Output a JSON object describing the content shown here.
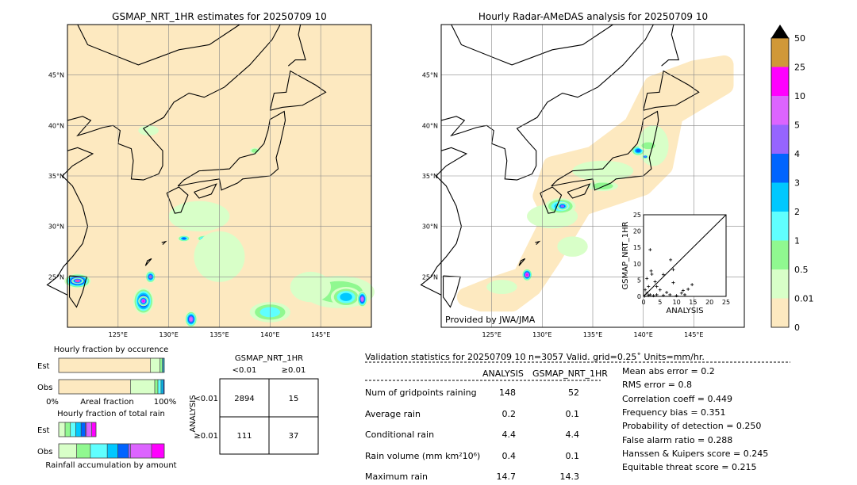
{
  "map_left": {
    "title": "GSMAP_NRT_1HR estimates for 20250709 10"
  },
  "map_right": {
    "title": "Hourly Radar-AMeDAS analysis for 20250709 10",
    "credit": "Provided by JWA/JMA"
  },
  "axes": {
    "lon_ticks": [
      "125°E",
      "130°E",
      "135°E",
      "140°E",
      "145°E"
    ],
    "lon_values": [
      125,
      130,
      135,
      140,
      145
    ],
    "lat_ticks": [
      "45°N",
      "40°N",
      "35°N",
      "30°N",
      "25°N"
    ],
    "lat_values": [
      45,
      40,
      35,
      30,
      25
    ]
  },
  "colorbar": {
    "labels": [
      "0",
      "0.01",
      "0.5",
      "1",
      "2",
      "3",
      "4",
      "5",
      "10",
      "25",
      "50"
    ],
    "colors": [
      "#fde9c0",
      "#d8ffc8",
      "#90f890",
      "#60ffff",
      "#00c8ff",
      "#0064ff",
      "#9664ff",
      "#dc64ff",
      "#ff00ff",
      "#d09838"
    ],
    "extend_color": "#000000"
  },
  "chart_data": [
    {
      "type": "scatter",
      "xlabel": "ANALYSIS",
      "ylabel": "GSMAP_NRT_1HR",
      "xlim": [
        0,
        25
      ],
      "ylim": [
        0,
        25
      ],
      "ticks": [
        "0",
        "5",
        "10",
        "15",
        "20",
        "25"
      ],
      "points": [
        [
          2,
          14.3
        ],
        [
          8.2,
          11.2
        ],
        [
          9,
          8.2
        ],
        [
          2.3,
          7.8
        ],
        [
          2.5,
          6.8
        ],
        [
          6,
          6.7
        ],
        [
          1,
          5.5
        ],
        [
          9,
          4.2
        ],
        [
          14.7,
          3.6
        ],
        [
          3.5,
          4.5
        ],
        [
          12,
          1.8
        ],
        [
          13.5,
          2.2
        ],
        [
          11.5,
          1
        ],
        [
          12.5,
          0.5
        ],
        [
          7,
          1.2
        ],
        [
          5,
          2
        ],
        [
          4,
          3
        ],
        [
          1.5,
          3
        ],
        [
          0.5,
          2
        ],
        [
          1,
          1
        ],
        [
          2,
          0.5
        ],
        [
          3,
          0.2
        ],
        [
          0.3,
          0.1
        ],
        [
          1.5,
          0.3
        ],
        [
          4,
          0.5
        ],
        [
          6,
          0.3
        ],
        [
          8,
          0.5
        ],
        [
          10,
          0.2
        ]
      ]
    },
    {
      "type": "bar",
      "title": "Hourly fraction by occurence",
      "xlabel": "Areal fraction",
      "x_tick_labels": [
        "0%",
        "100%"
      ],
      "categories": [
        "Est",
        "Obs"
      ],
      "series": [
        {
          "category": "Est",
          "values_percent": [
            87,
            9,
            2,
            1,
            1
          ]
        },
        {
          "category": "Obs",
          "values_percent": [
            68,
            23,
            3,
            3,
            2,
            1
          ]
        }
      ]
    },
    {
      "type": "bar",
      "title": "Hourly fraction of total rain",
      "xlabel": "Rainfall accumulation by amount",
      "categories": [
        "Est",
        "Obs"
      ],
      "series": [
        {
          "category": "Est",
          "values_percent": [
            6,
            5,
            5,
            5,
            4,
            1,
            5,
            4
          ]
        },
        {
          "category": "Obs",
          "values_percent": [
            17,
            13,
            16,
            10,
            10,
            2,
            20,
            12
          ]
        }
      ]
    },
    {
      "type": "table",
      "title": "GSMAP_NRT_1HR",
      "col_labels": [
        "<0.01",
        "≥0.01"
      ],
      "row_title": "ANALYSIS",
      "row_labels": [
        "<0.01",
        "≥0.01"
      ],
      "cells": [
        [
          "2894",
          "15"
        ],
        [
          "111",
          "37"
        ]
      ]
    }
  ],
  "stats": {
    "header": "Validation statistics for 20250709 10  n=3057 Valid. grid=0.25˚ Units=mm/hr.",
    "col1": "ANALYSIS",
    "col2": "GSMAP_NRT_1HR",
    "rows": [
      {
        "label": "Num of gridpoints raining",
        "a": "148",
        "b": "52"
      },
      {
        "label": "Average rain",
        "a": "0.2",
        "b": "0.1"
      },
      {
        "label": "Conditional rain",
        "a": "4.4",
        "b": "4.4"
      },
      {
        "label": "Rain volume (mm km²10⁶)",
        "a": "0.4",
        "b": "0.1"
      },
      {
        "label": "Maximum rain",
        "a": "14.7",
        "b": "14.3"
      }
    ],
    "scores": [
      "Mean abs error =    0.2",
      "RMS error =    0.8",
      "Correlation coeff =  0.449",
      "Frequency bias =  0.351",
      "Probability of detection =  0.250",
      "False alarm ratio =  0.288",
      "Hanssen & Kuipers score =  0.245",
      "Equitable threat score =  0.215"
    ]
  }
}
